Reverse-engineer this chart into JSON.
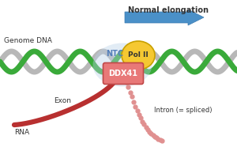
{
  "bg_color": "#ffffff",
  "arrow_color": "#4a90c8",
  "arrow_edge": "#3a7ab0",
  "dna_green": "#3aaa3a",
  "dna_gray": "#b8b8b8",
  "pol2_color": "#f5c832",
  "pol2_edge": "#c8a000",
  "ntc_text_color": "#5580bb",
  "ddx41_fill": "#e87878",
  "ddx41_edge": "#c04848",
  "ddx41_glow": "#b8d0e8",
  "rna_color": "#b83030",
  "intron_color": "#e09090",
  "title": "Normal elongation",
  "label_genome": "Genome DNA",
  "label_exon": "Exon",
  "label_rna": "RNA",
  "label_intron": "Intron (= spliced)",
  "label_ntc": "NTC",
  "label_pol2": "Pol II",
  "label_ddx41": "DDX41",
  "figw": 3.0,
  "figh": 1.86,
  "dpi": 100
}
